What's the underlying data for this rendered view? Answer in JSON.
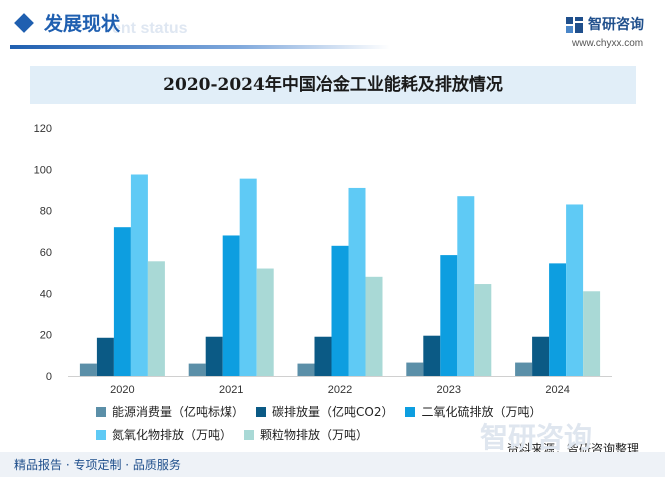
{
  "header": {
    "section_title": "发展现状",
    "section_subtitle": "ent status",
    "brand_name": "智研咨询",
    "brand_url": "www.chyxx.com"
  },
  "chart_data": {
    "type": "bar",
    "title": "2020-2024年中国冶金工业能耗及排放情况",
    "categories": [
      "2020",
      "2021",
      "2022",
      "2023",
      "2024"
    ],
    "ylim": [
      0,
      120
    ],
    "yticks": [
      0,
      20,
      40,
      60,
      80,
      100,
      120
    ],
    "grid": false,
    "legend_position": "bottom",
    "series": [
      {
        "name": "能源消费量（亿吨标煤）",
        "color": "#5b8fa8",
        "values": [
          6,
          6,
          6,
          6.5,
          6.5
        ]
      },
      {
        "name": "碳排放量（亿吨CO2）",
        "color": "#0b5a85",
        "values": [
          18.5,
          19,
          19,
          19.5,
          19
        ]
      },
      {
        "name": "二氧化硫排放（万吨）",
        "color": "#0d9ee0",
        "values": [
          72,
          68,
          63,
          58.5,
          54.5
        ]
      },
      {
        "name": "氮氧化物排放（万吨）",
        "color": "#5fcaf5",
        "values": [
          97.5,
          95.5,
          91,
          87,
          83
        ]
      },
      {
        "name": "颗粒物排放（万吨）",
        "color": "#a9d9d6",
        "values": [
          55.5,
          52,
          48,
          44.5,
          41
        ]
      }
    ]
  },
  "source": "资料来源：智研咨询整理",
  "footer": {
    "text": "精品报告 · 专项定制 · 品质服务",
    "watermark": "智研咨询"
  }
}
